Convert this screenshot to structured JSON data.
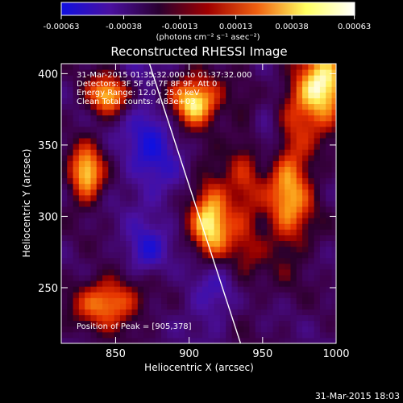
{
  "chart_data": {
    "type": "heatmap",
    "title": "Reconstructed RHESSI Image",
    "xlabel": "Heliocentric X (arcsec)",
    "ylabel": "Heliocentric Y (arcsec)",
    "xlim": [
      813,
      1000
    ],
    "ylim": [
      211,
      407
    ],
    "x_ticks": [
      850,
      900,
      950,
      1000
    ],
    "y_ticks": [
      250,
      300,
      350,
      400
    ],
    "colorbar": {
      "ticks": [
        "-0.00063",
        "-0.00038",
        "-0.00013",
        "0.00013",
        "0.00038",
        "0.00063"
      ],
      "unit_label": "(photons cm⁻² s⁻¹ asec⁻²)",
      "colors": [
        "#1010e0",
        "#4a10a0",
        "#2a0030",
        "#a00000",
        "#f06010",
        "#ffff60",
        "#ffffff"
      ]
    },
    "annotations": [
      "31-Mar-2015 01:35:32.000 to 01:37:32.000",
      "Detectors: 3F 5F 6F 7F 8F 9F, Att 0",
      "Energy Range: 12.0 - 25.0 keV",
      "Clean    Total counts: 4.83e+03"
    ],
    "peak_label": "Position of Peak = [905,378]",
    "limb_line": [
      [
        873,
        407
      ],
      [
        935,
        211
      ]
    ],
    "emission_blobs": [
      {
        "x": 990,
        "y": 390,
        "sx": 14,
        "sy": 18,
        "amp": 1.0
      },
      {
        "x": 903,
        "y": 380,
        "sx": 12,
        "sy": 12,
        "amp": 1.0
      },
      {
        "x": 845,
        "y": 385,
        "sx": 10,
        "sy": 10,
        "amp": 0.8
      },
      {
        "x": 830,
        "y": 330,
        "sx": 8,
        "sy": 14,
        "amp": 0.85
      },
      {
        "x": 915,
        "y": 295,
        "sx": 10,
        "sy": 22,
        "amp": 0.9
      },
      {
        "x": 845,
        "y": 240,
        "sx": 16,
        "sy": 12,
        "amp": 0.7
      },
      {
        "x": 967,
        "y": 320,
        "sx": 12,
        "sy": 32,
        "amp": 0.75
      },
      {
        "x": 880,
        "y": 390,
        "sx": 10,
        "sy": 10,
        "amp": 0.35
      },
      {
        "x": 938,
        "y": 310,
        "sx": 8,
        "sy": 45,
        "amp": 0.35
      }
    ],
    "negative_blobs": [
      {
        "x": 875,
        "y": 360,
        "sx": 14,
        "sy": 40,
        "amp": 0.6
      },
      {
        "x": 915,
        "y": 250,
        "sx": 12,
        "sy": 20,
        "amp": 0.5
      },
      {
        "x": 955,
        "y": 355,
        "sx": 8,
        "sy": 25,
        "amp": 0.4
      },
      {
        "x": 870,
        "y": 275,
        "sx": 10,
        "sy": 12,
        "amp": 0.5
      }
    ]
  },
  "footer": {
    "timestamp": "31-Mar-2015 18:03"
  }
}
